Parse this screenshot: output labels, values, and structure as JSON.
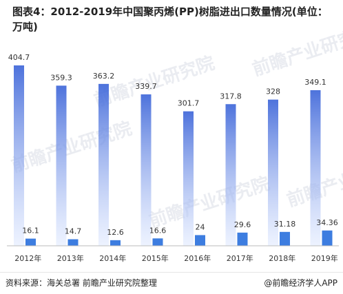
{
  "title": "图表4：2012-2019年中国聚丙烯(PP)树脂进出口数量情况(单位：万吨)",
  "source": "资料来源：海关总署 前瞻产业研究院整理",
  "brand": "@前瞻经济学人APP",
  "watermark": "前瞻产业研究院",
  "colors": {
    "import_top": "#3a63d8",
    "import_bottom": "#dbe6ff",
    "export": "#3d7de0",
    "axis": "#bbbbbb",
    "label": "#333333"
  },
  "chart_data": {
    "type": "bar",
    "categories": [
      "2012年",
      "2013年",
      "2014年",
      "2015年",
      "2016年",
      "2017年",
      "2018年",
      "2019年"
    ],
    "series": [
      {
        "values": [
          404.7,
          359.3,
          363.2,
          339.7,
          301.7,
          317.8,
          328,
          349.1
        ]
      },
      {
        "values": [
          16.1,
          14.7,
          12.6,
          16.6,
          24,
          29.6,
          31.18,
          34.36
        ]
      }
    ],
    "value_labels": [
      [
        "404.7",
        "359.3",
        "363.2",
        "339.7",
        "301.7",
        "317.8",
        "328",
        "349.1"
      ],
      [
        "16.1",
        "14.7",
        "12.6",
        "16.6",
        "24",
        "29.6",
        "31.18",
        "34.36"
      ]
    ],
    "ylim": [
      0,
      404.7
    ],
    "grid": false,
    "legend": "none"
  }
}
